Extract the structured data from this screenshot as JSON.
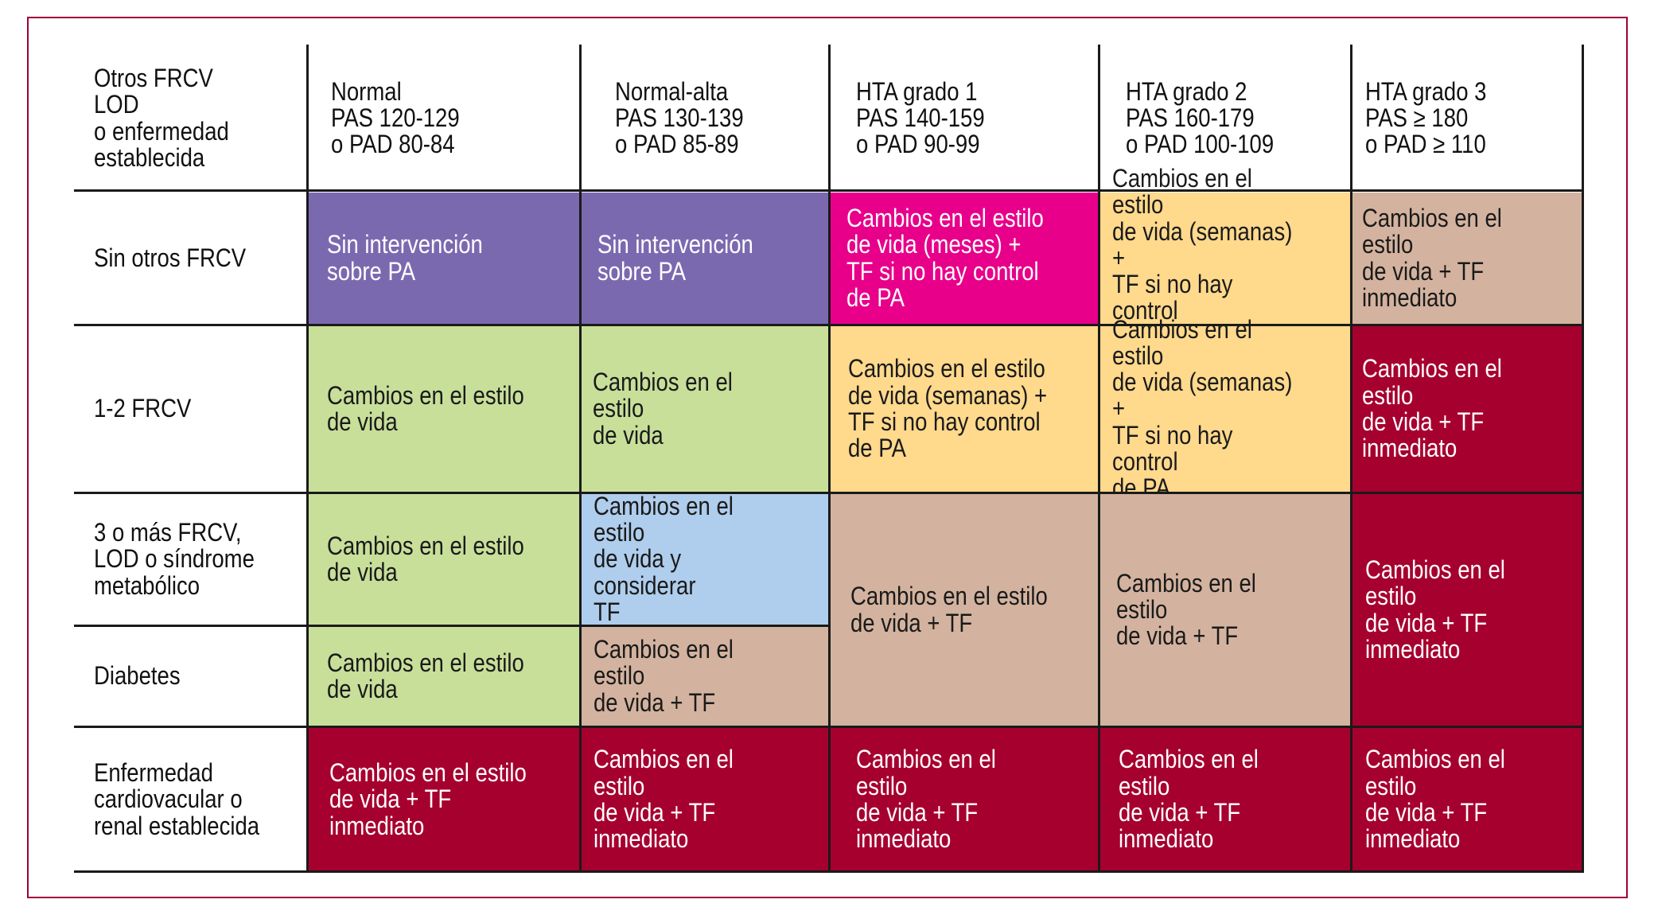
{
  "colors": {
    "purple": "#7b69b0",
    "green": "#c8df9a",
    "magenta": "#e8008a",
    "yellow": "#ffd98c",
    "tan": "#d3b39f",
    "blue": "#afcdec",
    "crimson": "#a6002e",
    "border": "#a0003a"
  },
  "headers": [
    "Otros FRCV LOD\no enfermedad\nestablecida",
    "Normal\nPAS 120-129\no PAD 80-84",
    "Normal-alta\nPAS 130-139\no PAD 85-89",
    "HTA grado 1\nPAS 140-159\no PAD 90-99",
    "HTA grado 2\nPAS 160-179\no PAD 100-109",
    "HTA grado 3\nPAS ≥ 180\no PAD ≥ 110"
  ],
  "row_labels": [
    "Sin otros FRCV",
    "1-2 FRCV",
    "3 o más FRCV,\nLOD o síndrome\nmetabólico",
    "Diabetes",
    "Enfermedad\ncardiovacular o\nrenal establecida"
  ],
  "cells": {
    "r1c1": "Sin intervención\nsobre PA",
    "r1c2": "Sin intervención\nsobre PA",
    "r1c3": "Cambios en el estilo\nde vida (meses) +\nTF si no hay control\nde PA",
    "r1c4": "Cambios en el estilo\nde vida (semanas) +\nTF si no hay control\nde PA",
    "r1c5": "Cambios en el estilo\nde vida + TF\ninmediato",
    "r2c1": "Cambios en el estilo\nde vida",
    "r2c2": "Cambios en el estilo\nde vida",
    "r2c3": "Cambios en el estilo\nde vida (semanas) +\nTF si no hay control\nde PA",
    "r2c4": "Cambios en el estilo\nde vida (semanas) +\nTF si no hay control\nde PA",
    "r2c5": "Cambios en el estilo\nde vida + TF\ninmediato",
    "r3c1": "Cambios en el estilo\nde vida",
    "r3c2": "Cambios en el estilo\nde vida y considerar\nTF",
    "r34c3": "Cambios en el estilo\nde vida + TF",
    "r34c4": "Cambios en el estilo\nde vida + TF",
    "r34c5": "Cambios en el estilo\nde vida + TF\ninmediato",
    "r4c1": "Cambios en el estilo\nde vida",
    "r4c2": "Cambios en el estilo\nde vida + TF",
    "r5c1": "Cambios en el estilo\nde vida + TF\ninmediato",
    "r5c2": "Cambios en el estilo\nde vida + TF\ninmediato",
    "r5c3": "Cambios en el estilo\nde vida + TF\ninmediato",
    "r5c4": "Cambios en el estilo\nde vida + TF\ninmediato",
    "r5c5": "Cambios en el estilo\nde vida + TF\ninmediato"
  }
}
